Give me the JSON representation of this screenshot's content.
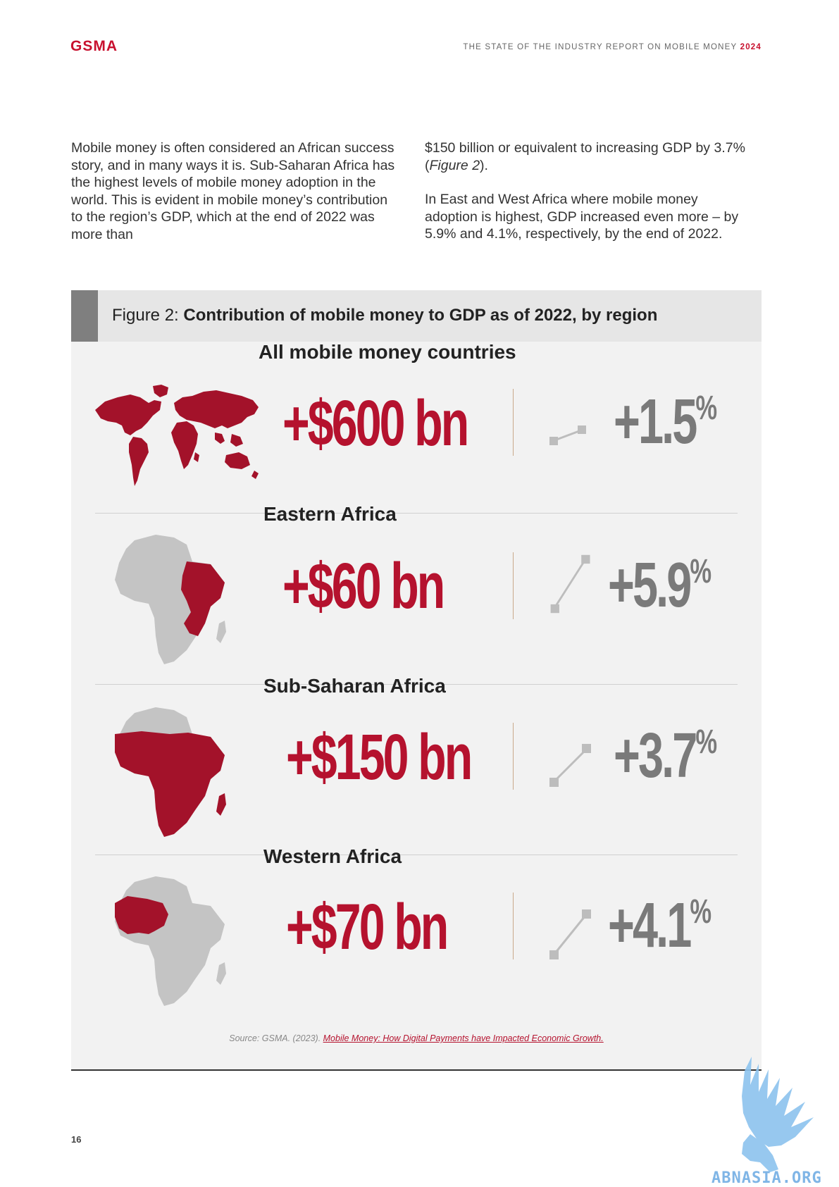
{
  "header": {
    "logo": "GSMA",
    "report_title": "THE STATE OF THE INDUSTRY REPORT ON MOBILE MONEY",
    "report_year": "2024"
  },
  "body": {
    "left_paragraph": "Mobile money is often considered an African success story, and in many ways it is. Sub-Saharan Africa has the highest levels of mobile money adoption in the world. This is evident in mobile money’s contribution to the region’s GDP, which at the end of 2022 was more than",
    "right_paragraph_1_pre": "$150 billion or equivalent to increasing GDP by 3.7% (",
    "right_paragraph_1_italic": "Figure 2",
    "right_paragraph_1_post": ").",
    "right_paragraph_2": "In East and West Africa where mobile money adoption is highest, GDP increased even more – by 5.9% and 4.1%, respectively, by the end of 2022."
  },
  "figure": {
    "label": "Figure 2:",
    "title": "Contribution of mobile money to GDP as of 2022, by region",
    "rows": [
      {
        "region": "All mobile money countries",
        "value": "+$600 bn",
        "pct": "+1.5",
        "pct_sign": "%",
        "map": "world-map"
      },
      {
        "region": "Eastern Africa",
        "value": "+$60 bn",
        "pct": "+5.9",
        "pct_sign": "%",
        "map": "africa-eastern"
      },
      {
        "region": "Sub-Saharan Africa",
        "value": "+$150 bn",
        "pct": "+3.7",
        "pct_sign": "%",
        "map": "africa-subsaharan"
      },
      {
        "region": "Western Africa",
        "value": "+$70 bn",
        "pct": "+4.1",
        "pct_sign": "%",
        "map": "africa-western"
      }
    ],
    "source_prefix": "Source: GSMA. (2023). ",
    "source_link": "Mobile Money: How Digital Payments have Impacted Economic Growth."
  },
  "footer": {
    "page_number": "16"
  },
  "watermark": {
    "text": "ABNASIA.ORG"
  },
  "colors": {
    "accent": "#b5122e",
    "grey": "#7a7a7a",
    "map_grey": "#c4c4c4"
  }
}
